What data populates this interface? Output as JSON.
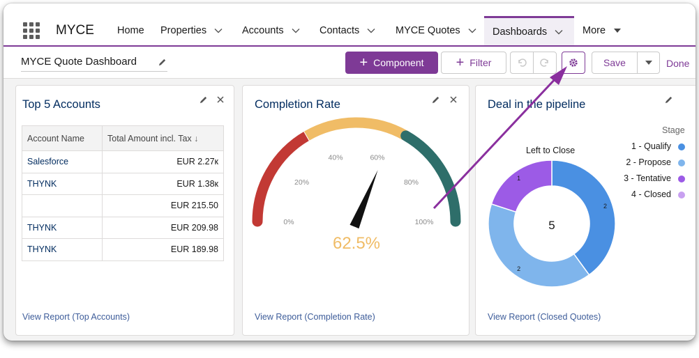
{
  "app": {
    "name": "MYCE"
  },
  "nav": {
    "items": [
      {
        "label": "Home"
      },
      {
        "label": "Properties"
      },
      {
        "label": "Accounts"
      },
      {
        "label": "Contacts"
      },
      {
        "label": "MYCE Quotes"
      },
      {
        "label": "Dashboards"
      },
      {
        "label": "More"
      }
    ],
    "active": "Dashboards"
  },
  "toolbar": {
    "dashboard_name": "MYCE Quote Dashboard",
    "component_label": "Component",
    "filter_label": "Filter",
    "save_label": "Save",
    "done_label": "Done"
  },
  "cards": {
    "accounts": {
      "title": "Top 5 Accounts",
      "columns": [
        "Account Name",
        "Total Amount incl. Tax"
      ],
      "rows": [
        {
          "name": "Salesforce",
          "amount": "EUR 2.27к"
        },
        {
          "name": "THYNK",
          "amount": "EUR 1.38к"
        },
        {
          "name": "",
          "amount": "EUR 215.50"
        },
        {
          "name": "THYNK",
          "amount": "EUR 209.98"
        },
        {
          "name": "THYNK",
          "amount": "EUR 189.98"
        }
      ],
      "link": "View Report (Top Accounts)"
    },
    "completion": {
      "title": "Completion Rate",
      "value": "62.5%",
      "value_fraction": 0.625,
      "tick_labels": [
        "0%",
        "20%",
        "40%",
        "60%",
        "80%",
        "100%"
      ],
      "link": "View Report (Completion Rate)"
    },
    "pipeline": {
      "title": "Deal in the pipeline",
      "chart_title": "Left to Close",
      "legend_title": "Stage",
      "center_total": "5",
      "link": "View Report (Closed Quotes)"
    }
  },
  "chart_data": [
    {
      "type": "gauge",
      "title": "Completion Rate",
      "value": 62.5,
      "range": [
        0,
        100
      ],
      "tick_labels": [
        "0%",
        "20%",
        "40%",
        "60%",
        "80%",
        "100%"
      ],
      "bands": [
        {
          "range": [
            0,
            33.3
          ],
          "color": "#c23934"
        },
        {
          "range": [
            33.3,
            66.6
          ],
          "color": "#f0bc66"
        },
        {
          "range": [
            66.6,
            100
          ],
          "color": "#2e6e6a"
        }
      ]
    },
    {
      "type": "pie",
      "title": "Left to Close",
      "donut": true,
      "center_label": "5",
      "legend_title": "Stage",
      "legend_position": "right",
      "categories": [
        "1 - Qualify",
        "2 - Propose",
        "3 - Tentative",
        "4 - Closed"
      ],
      "series": [
        {
          "values": [
            2,
            2,
            1,
            0
          ],
          "colors": [
            "#4a90e2",
            "#7fb5ec",
            "#9c5be6",
            "#c8a0f0"
          ]
        }
      ]
    }
  ],
  "colors": {
    "accent": "#7e3a96",
    "link": "#3e5d9a",
    "title": "#032d60",
    "annotation_arrow": "#8a2f9e"
  }
}
